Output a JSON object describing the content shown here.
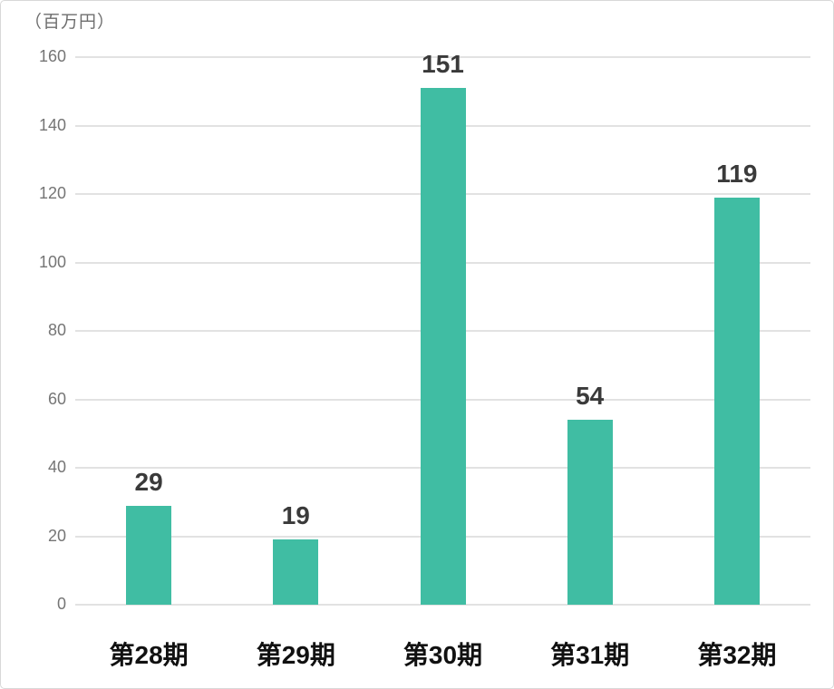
{
  "chart_data": {
    "type": "bar",
    "title": "",
    "unit_label": "（百万円）",
    "categories": [
      "第28期",
      "第29期",
      "第30期",
      "第31期",
      "第32期"
    ],
    "values": [
      29,
      19,
      151,
      54,
      119
    ],
    "value_labels": [
      "29",
      "19",
      "151",
      "54",
      "119"
    ],
    "yticks": [
      0,
      20,
      40,
      60,
      80,
      100,
      120,
      140,
      160
    ],
    "ylim": [
      0,
      160
    ],
    "xlabel": "",
    "ylabel": "（百万円）",
    "grid": true,
    "legend": "none",
    "colors": {
      "bar": "#40bda3",
      "gridline": "#e2e2e2",
      "tick_label": "#757575",
      "value_label": "#3a3a3a",
      "category_label": "#111111",
      "unit_label": "#6e6e6e",
      "background": "#ffffff",
      "frame_border": "#d8d8d8"
    }
  }
}
